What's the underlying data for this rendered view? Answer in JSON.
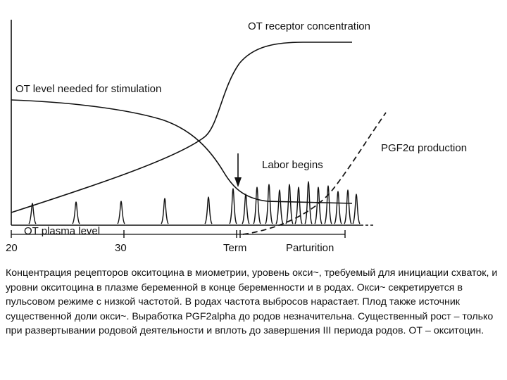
{
  "figure": {
    "labels": {
      "receptor": "OT receptor concentration",
      "needed": "OT level needed for stimulation",
      "pgf": "PGF2α production",
      "labor": "Labor begins",
      "plasma": "OT plasma level"
    },
    "x_ticks": [
      "20",
      "30",
      "Term",
      "Parturition"
    ]
  },
  "caption": "Концентрация рецепторов окситоцина в миометрии, уровень окси~, требуемый для инициации схваток, и уровни окситоцина в плазме беременной в конце беременности и в родах. Окси~ секретируется в пульсовом режиме с низкой частотой. В родах частота выбросов нарастает. Плод также источник существенной доли окси~. Выработка PGF2alpha до родов незначительна. Существенный рост – только при развертывании родовой деятельности и вплоть до завершения III периода родов. ОТ – окситоцин."
}
